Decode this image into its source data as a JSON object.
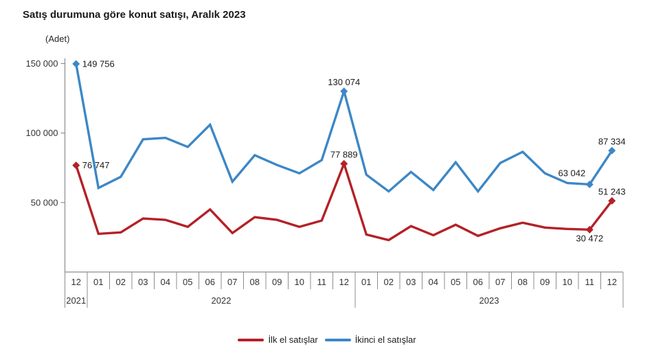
{
  "title": "Satış durumuna göre konut satışı, Aralık 2023",
  "y_axis_unit": "(Adet)",
  "chart_data": {
    "type": "line",
    "title": "Satış durumuna göre konut satışı, Aralık 2023",
    "ylabel": "(Adet)",
    "ylim": [
      0,
      155000
    ],
    "grid": false,
    "legend_position": "bottom",
    "yticks": [
      {
        "value": 50000,
        "label": "50 000"
      },
      {
        "value": 100000,
        "label": "100 000"
      },
      {
        "value": 150000,
        "label": "150 000"
      }
    ],
    "x_months": [
      "12",
      "01",
      "02",
      "03",
      "04",
      "05",
      "06",
      "07",
      "08",
      "09",
      "10",
      "11",
      "12",
      "01",
      "02",
      "03",
      "04",
      "05",
      "06",
      "07",
      "08",
      "09",
      "10",
      "11",
      "12"
    ],
    "year_groups": [
      {
        "label": "2021",
        "span": 1
      },
      {
        "label": "2022",
        "span": 12
      },
      {
        "label": "2023",
        "span": 12
      }
    ],
    "axis_color": "#8c8c8c",
    "series": [
      {
        "name": "İlk el satışlar",
        "color": "#b42127",
        "values": [
          76747,
          27500,
          28500,
          38500,
          37500,
          32500,
          45000,
          28000,
          39500,
          37500,
          32500,
          37000,
          77889,
          27000,
          23000,
          33000,
          26500,
          34000,
          26000,
          31500,
          35500,
          32000,
          31000,
          30472,
          51243
        ],
        "labeled_points": [
          {
            "index": 0,
            "label": "76 747",
            "position": "right"
          },
          {
            "index": 12,
            "label": "77 889",
            "position": "above"
          },
          {
            "index": 23,
            "label": "30 472",
            "position": "below"
          },
          {
            "index": 24,
            "label": "51 243",
            "position": "above"
          }
        ]
      },
      {
        "name": "İkinci el satışlar",
        "color": "#3d87c6",
        "values": [
          149756,
          60500,
          68500,
          95500,
          96500,
          90000,
          106000,
          65000,
          84000,
          77000,
          71000,
          80500,
          130074,
          70000,
          58000,
          72000,
          59000,
          79000,
          58000,
          78500,
          86500,
          71000,
          64000,
          63042,
          87334
        ],
        "labeled_points": [
          {
            "index": 0,
            "label": "149 756",
            "position": "right"
          },
          {
            "index": 12,
            "label": "130 074",
            "position": "above"
          },
          {
            "index": 23,
            "label": "63 042",
            "position": "above-left"
          },
          {
            "index": 24,
            "label": "87 334",
            "position": "above"
          }
        ]
      }
    ]
  }
}
